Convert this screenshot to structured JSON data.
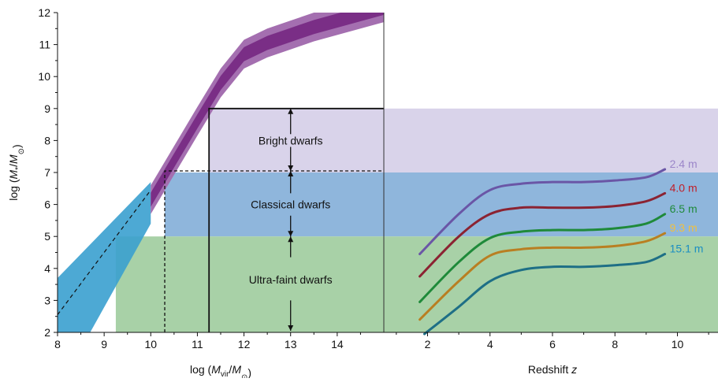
{
  "chart_data": [
    {
      "type": "area",
      "xlabel": "log (M_vir/M_⊙)",
      "xlabel_parts": {
        "pre": "log (",
        "main": "M",
        "sub": "vir",
        "mid": "/",
        "main2": "M",
        "sub2": "⊙",
        "post": ")"
      },
      "ylabel": "log (M*/M_⊙)",
      "ylabel_parts": {
        "pre": "log (",
        "main": "M",
        "sub": "*",
        "mid": "/",
        "main2": "M",
        "sub2": "⊙",
        "post": ")"
      },
      "xlim": [
        8,
        15.0
      ],
      "ylim": [
        2,
        12
      ],
      "xticks": [
        8,
        9,
        10,
        11,
        12,
        13,
        14
      ],
      "yticks": [
        2,
        3,
        4,
        5,
        6,
        7,
        8,
        9,
        10,
        11,
        12
      ],
      "grid": false,
      "regions": [
        {
          "label": "Bright dwarfs",
          "y_range": [
            7,
            9
          ],
          "x_from": 11.25,
          "color": "#d9d3ea"
        },
        {
          "label": "Classical dwarfs",
          "y_range": [
            5,
            7
          ],
          "x_from": 10.3,
          "color": "#8fb6dc"
        },
        {
          "label": "Ultra-faint dwarfs",
          "y_range": [
            2,
            5
          ],
          "x_from": 9.25,
          "color": "#a8d1a7"
        }
      ],
      "relation_purple": {
        "color_inner": "#7a2e86",
        "color_outer": "#a46fb0",
        "points": [
          {
            "x": 10.0,
            "y": 6.15,
            "outer": 0.45,
            "inner": 0.22
          },
          {
            "x": 11.0,
            "y": 8.6,
            "outer": 0.45,
            "inner": 0.22
          },
          {
            "x": 11.5,
            "y": 9.8,
            "outer": 0.45,
            "inner": 0.22
          },
          {
            "x": 12.0,
            "y": 10.7,
            "outer": 0.45,
            "inner": 0.22
          },
          {
            "x": 12.5,
            "y": 11.05,
            "outer": 0.45,
            "inner": 0.22
          },
          {
            "x": 13.0,
            "y": 11.3,
            "outer": 0.45,
            "inner": 0.22
          },
          {
            "x": 13.5,
            "y": 11.55,
            "outer": 0.45,
            "inner": 0.22
          },
          {
            "x": 14.0,
            "y": 11.75,
            "outer": 0.45,
            "inner": 0.22
          },
          {
            "x": 14.5,
            "y": 11.95,
            "outer": 0.45,
            "inner": 0.22
          },
          {
            "x": 15.0,
            "y": 12.15,
            "outer": 0.45,
            "inner": 0.22
          }
        ]
      },
      "relation_cyan": {
        "color": "#3aa0cf",
        "upper": [
          [
            8,
            3.7
          ],
          [
            10,
            6.7
          ]
        ],
        "lower": [
          [
            8,
            2.0
          ],
          [
            8.7,
            2.0
          ],
          [
            10,
            5.4
          ]
        ],
        "dashed": [
          [
            8,
            2.55
          ],
          [
            10,
            6.45
          ]
        ]
      },
      "boxes": [
        {
          "x_from": 11.25,
          "y_top": 9,
          "style": "solid"
        },
        {
          "x_from": 10.3,
          "y_top": 7.05,
          "style": "dashed"
        }
      ],
      "arrows_x": 13.0,
      "arrows": [
        {
          "y_from": 8.2,
          "y_to": 9.0
        },
        {
          "y_from": 7.8,
          "y_to": 7.05
        },
        {
          "y_from": 6.35,
          "y_to": 7.05
        },
        {
          "y_from": 5.65,
          "y_to": 5.0
        },
        {
          "y_from": 4.35,
          "y_to": 5.0
        },
        {
          "y_from": 3.0,
          "y_to": 2.05
        }
      ]
    },
    {
      "type": "line",
      "xlabel": "Redshift z",
      "xlabel_parts": {
        "pre": "Redshift ",
        "italic": "z"
      },
      "xlim": [
        0.6,
        11.3
      ],
      "ylim": [
        2,
        12
      ],
      "xticks": [
        2,
        4,
        6,
        8,
        10
      ],
      "grid": false,
      "series": [
        {
          "name": "2.4 m",
          "color": "#6a56a6",
          "label_color": "#9b86c9",
          "points": [
            [
              1.75,
              4.45
            ],
            [
              3,
              5.7
            ],
            [
              4,
              6.45
            ],
            [
              5,
              6.65
            ],
            [
              6,
              6.7
            ],
            [
              7,
              6.7
            ],
            [
              8,
              6.75
            ],
            [
              9,
              6.85
            ],
            [
              9.6,
              7.1
            ]
          ]
        },
        {
          "name": "4.0 m",
          "color": "#8b2332",
          "label_color": "#c0202a",
          "points": [
            [
              1.75,
              3.75
            ],
            [
              3,
              5.0
            ],
            [
              4,
              5.7
            ],
            [
              5,
              5.9
            ],
            [
              6,
              5.9
            ],
            [
              7,
              5.9
            ],
            [
              8,
              5.95
            ],
            [
              9,
              6.1
            ],
            [
              9.6,
              6.35
            ]
          ]
        },
        {
          "name": "6.5 m",
          "color": "#1f8a3a",
          "label_color": "#1f8a3a",
          "points": [
            [
              1.75,
              2.95
            ],
            [
              3,
              4.2
            ],
            [
              4,
              4.95
            ],
            [
              5,
              5.15
            ],
            [
              6,
              5.2
            ],
            [
              7,
              5.2
            ],
            [
              8,
              5.25
            ],
            [
              9,
              5.4
            ],
            [
              9.6,
              5.7
            ]
          ]
        },
        {
          "name": "9.3 m",
          "color": "#b97f22",
          "label_color": "#f0c040",
          "points": [
            [
              1.75,
              2.4
            ],
            [
              3,
              3.6
            ],
            [
              4,
              4.4
            ],
            [
              5,
              4.6
            ],
            [
              6,
              4.65
            ],
            [
              7,
              4.65
            ],
            [
              8,
              4.7
            ],
            [
              9,
              4.85
            ],
            [
              9.6,
              5.1
            ]
          ]
        },
        {
          "name": "15.1 m",
          "color": "#1e6f86",
          "label_color": "#1b8ec2",
          "points": [
            [
              1.9,
              1.95
            ],
            [
              3,
              2.8
            ],
            [
              4,
              3.6
            ],
            [
              5,
              3.95
            ],
            [
              6,
              4.05
            ],
            [
              7,
              4.05
            ],
            [
              8,
              4.1
            ],
            [
              9,
              4.2
            ],
            [
              9.6,
              4.45
            ]
          ]
        }
      ]
    }
  ]
}
